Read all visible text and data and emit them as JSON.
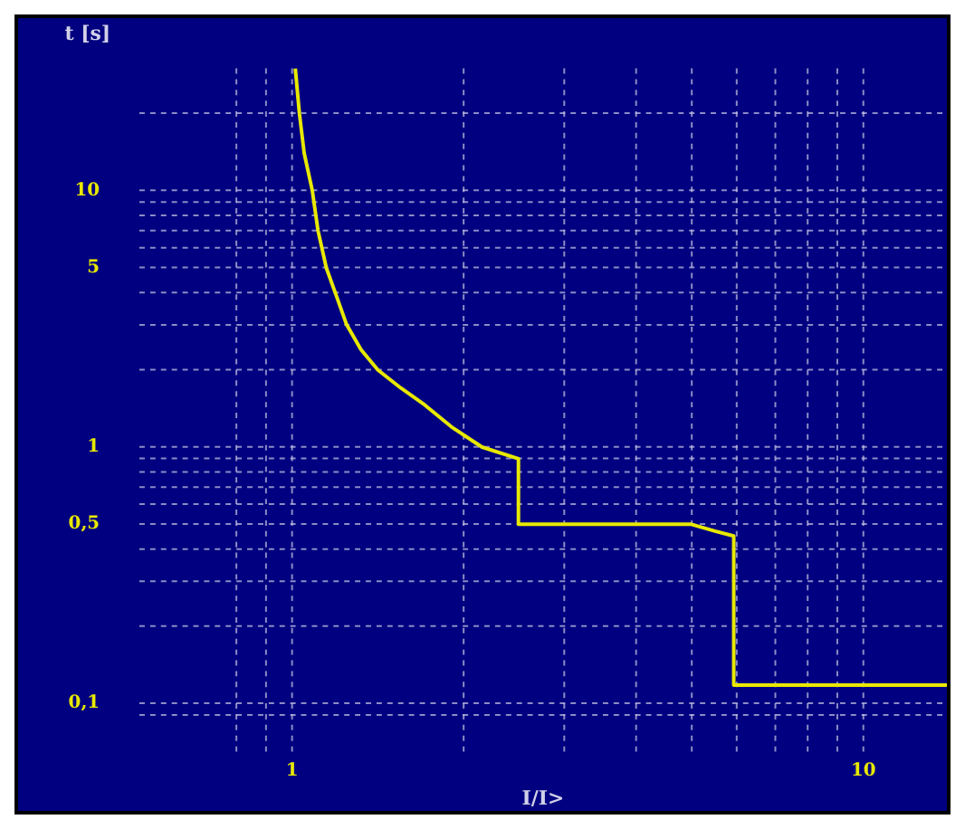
{
  "chart_data": {
    "type": "line",
    "xlabel": "I/I>",
    "ylabel": "t [s]",
    "log": "xy",
    "grid": true,
    "legend": false,
    "marker": "none",
    "line_style": "solid",
    "xlim": [
      0.54,
      14
    ],
    "ylim": [
      0.063,
      30
    ],
    "xticks": [
      {
        "value": 0.8,
        "label": null
      },
      {
        "value": 0.9,
        "label": null
      },
      1,
      {
        "value": 2,
        "label": null
      },
      {
        "value": 3,
        "label": null
      },
      {
        "value": 4,
        "label": null
      },
      {
        "value": 5,
        "label": null
      },
      {
        "value": 6,
        "label": null
      },
      {
        "value": 7,
        "label": null
      },
      {
        "value": 8,
        "label": null
      },
      {
        "value": 9,
        "label": null
      },
      10
    ],
    "yticks": [
      {
        "value": 0.09,
        "label": null
      },
      {
        "value": 0.1,
        "label": "0,1"
      },
      {
        "value": 0.2,
        "label": null
      },
      {
        "value": 0.3,
        "label": null
      },
      {
        "value": 0.4,
        "label": null
      },
      {
        "value": 0.5,
        "label": "0,5"
      },
      {
        "value": 0.6,
        "label": null
      },
      {
        "value": 0.7,
        "label": null
      },
      {
        "value": 0.8,
        "label": null
      },
      {
        "value": 0.9,
        "label": null
      },
      1,
      {
        "value": 2,
        "label": null
      },
      {
        "value": 3,
        "label": null
      },
      {
        "value": 4,
        "label": null
      },
      5,
      {
        "value": 6,
        "label": null
      },
      {
        "value": 7,
        "label": null
      },
      {
        "value": 8,
        "label": null
      },
      {
        "value": 9,
        "label": null
      },
      10,
      {
        "value": 20,
        "label": null
      }
    ],
    "series": [
      {
        "color": "#e8e800",
        "x": [
          1.013,
          1.03,
          1.05,
          1.085,
          1.11,
          1.148,
          1.19,
          1.246,
          1.32,
          1.413,
          1.55,
          1.707,
          1.9,
          2.15,
          2.49,
          2.49,
          5.0,
          5.5,
          5.93,
          5.93,
          14
        ],
        "values": [
          30,
          20,
          14,
          10,
          7,
          5,
          4,
          3,
          2.4,
          2,
          1.7,
          1.46,
          1.2,
          1.0,
          0.9,
          0.5,
          0.5,
          0.47,
          0.45,
          0.118,
          0.118
        ]
      }
    ]
  }
}
